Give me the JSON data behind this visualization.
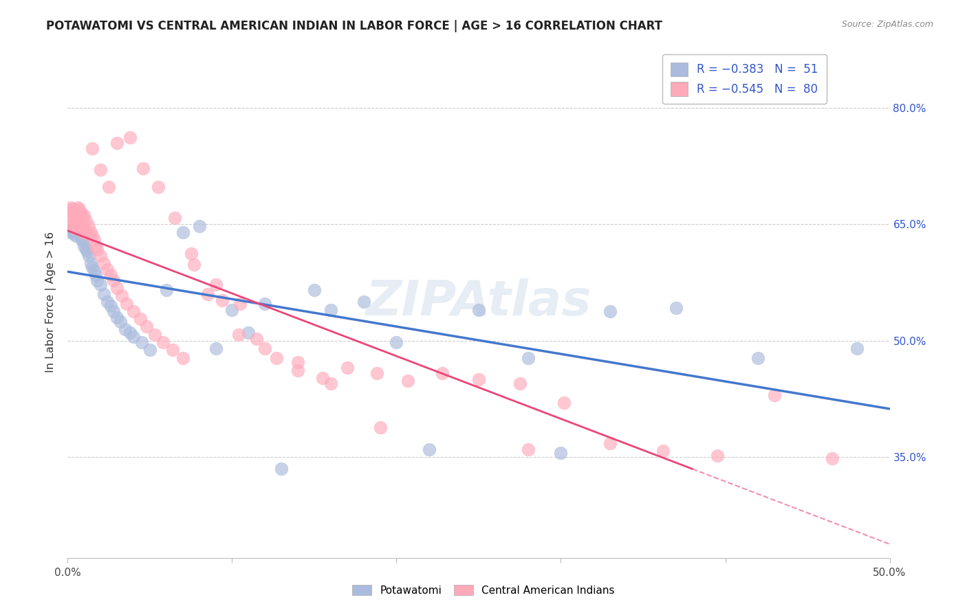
{
  "title": "POTAWATOMI VS CENTRAL AMERICAN INDIAN IN LABOR FORCE | AGE > 16 CORRELATION CHART",
  "source": "Source: ZipAtlas.com",
  "ylabel": "In Labor Force | Age > 16",
  "xlim": [
    0.0,
    0.5
  ],
  "ylim": [
    0.22,
    0.88
  ],
  "yticks": [
    0.35,
    0.5,
    0.65,
    0.8
  ],
  "ytick_labels": [
    "35.0%",
    "50.0%",
    "65.0%",
    "80.0%"
  ],
  "xtick_vals": [
    0.0,
    0.1,
    0.2,
    0.3,
    0.4,
    0.5
  ],
  "xtick_labels": [
    "0.0%",
    "",
    "",
    "",
    "",
    "50.0%"
  ],
  "blue_color": "#AABBDD",
  "pink_color": "#FFAABB",
  "blue_line_color": "#4477CC",
  "pink_line_color": "#EE4477",
  "watermark": "ZIPAtlas",
  "pot_x": [
    0.001,
    0.002,
    0.003,
    0.004,
    0.005,
    0.006,
    0.006,
    0.007,
    0.008,
    0.009,
    0.01,
    0.011,
    0.012,
    0.013,
    0.014,
    0.015,
    0.016,
    0.017,
    0.018,
    0.02,
    0.022,
    0.024,
    0.026,
    0.028,
    0.03,
    0.032,
    0.035,
    0.038,
    0.04,
    0.045,
    0.05,
    0.06,
    0.07,
    0.08,
    0.09,
    0.1,
    0.11,
    0.12,
    0.13,
    0.15,
    0.16,
    0.18,
    0.2,
    0.22,
    0.25,
    0.28,
    0.3,
    0.33,
    0.37,
    0.42,
    0.48
  ],
  "pot_y": [
    0.64,
    0.642,
    0.645,
    0.638,
    0.635,
    0.66,
    0.648,
    0.66,
    0.632,
    0.628,
    0.622,
    0.618,
    0.615,
    0.61,
    0.6,
    0.595,
    0.59,
    0.585,
    0.578,
    0.572,
    0.56,
    0.55,
    0.545,
    0.538,
    0.53,
    0.525,
    0.515,
    0.51,
    0.505,
    0.498,
    0.488,
    0.565,
    0.64,
    0.648,
    0.49,
    0.54,
    0.51,
    0.548,
    0.335,
    0.565,
    0.54,
    0.55,
    0.498,
    0.36,
    0.54,
    0.478,
    0.355,
    0.538,
    0.542,
    0.478,
    0.49
  ],
  "ca_x": [
    0.001,
    0.001,
    0.002,
    0.002,
    0.003,
    0.003,
    0.004,
    0.004,
    0.005,
    0.005,
    0.005,
    0.006,
    0.006,
    0.007,
    0.007,
    0.008,
    0.008,
    0.009,
    0.009,
    0.01,
    0.01,
    0.011,
    0.012,
    0.013,
    0.014,
    0.015,
    0.016,
    0.017,
    0.018,
    0.02,
    0.022,
    0.024,
    0.026,
    0.028,
    0.03,
    0.033,
    0.036,
    0.04,
    0.044,
    0.048,
    0.053,
    0.058,
    0.064,
    0.07,
    0.077,
    0.085,
    0.094,
    0.104,
    0.115,
    0.127,
    0.14,
    0.155,
    0.17,
    0.188,
    0.207,
    0.228,
    0.25,
    0.275,
    0.302,
    0.33,
    0.362,
    0.395,
    0.43,
    0.465,
    0.015,
    0.02,
    0.025,
    0.03,
    0.038,
    0.046,
    0.055,
    0.065,
    0.075,
    0.09,
    0.105,
    0.12,
    0.14,
    0.16,
    0.19,
    0.28
  ],
  "ca_y": [
    0.668,
    0.66,
    0.672,
    0.655,
    0.67,
    0.65,
    0.665,
    0.645,
    0.668,
    0.66,
    0.652,
    0.672,
    0.648,
    0.67,
    0.645,
    0.665,
    0.65,
    0.66,
    0.64,
    0.662,
    0.645,
    0.655,
    0.638,
    0.648,
    0.64,
    0.635,
    0.63,
    0.622,
    0.618,
    0.61,
    0.6,
    0.592,
    0.585,
    0.578,
    0.568,
    0.558,
    0.548,
    0.538,
    0.528,
    0.518,
    0.508,
    0.498,
    0.488,
    0.478,
    0.598,
    0.56,
    0.552,
    0.508,
    0.502,
    0.478,
    0.472,
    0.452,
    0.465,
    0.458,
    0.448,
    0.458,
    0.45,
    0.445,
    0.42,
    0.368,
    0.358,
    0.352,
    0.43,
    0.348,
    0.748,
    0.72,
    0.698,
    0.755,
    0.762,
    0.722,
    0.698,
    0.658,
    0.612,
    0.572,
    0.548,
    0.49,
    0.462,
    0.445,
    0.388,
    0.36
  ]
}
